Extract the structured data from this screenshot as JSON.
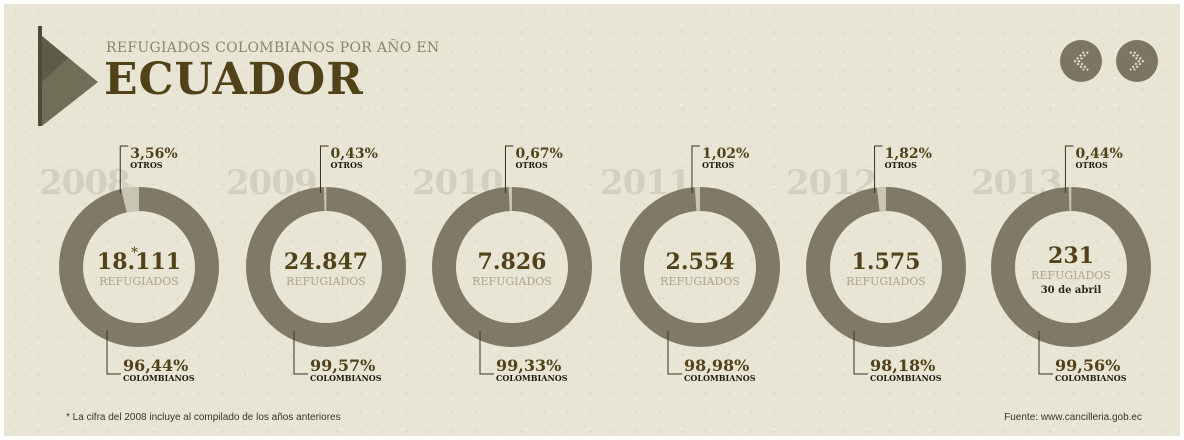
{
  "header": {
    "subtitle": "REFUGIADOS COLOMBIANOS POR AÑO EN",
    "title": "ECUADOR"
  },
  "nav": {
    "prev_icon": "chevron-left-icon",
    "next_icon": "chevron-right-icon"
  },
  "colors": {
    "background": "#e8e5d5",
    "ring_colombianos": "#817968",
    "ring_otros": "#c9c5b4",
    "year_text": "#d4d0c0",
    "count_text": "#51421a",
    "label_text": "#aba48d",
    "pct_text": "#51421a"
  },
  "chart_data": {
    "type": "pie",
    "title": "REFUGIADOS COLOMBIANOS POR AÑO EN ECUADOR",
    "series_labels": {
      "otros": "OTROS",
      "colombianos": "COLOMBIANOS"
    },
    "unit_label": "REFUGIADOS",
    "years": [
      {
        "year": "2008",
        "total": "18.111",
        "asterisk": "*",
        "otros": 3.56,
        "otros_label": "3,56%",
        "colombianos": 96.44,
        "colombianos_label": "96,44%",
        "note": ""
      },
      {
        "year": "2009",
        "total": "24.847",
        "asterisk": "",
        "otros": 0.43,
        "otros_label": "0,43%",
        "colombianos": 99.57,
        "colombianos_label": "99,57%",
        "note": ""
      },
      {
        "year": "2010",
        "total": "7.826",
        "asterisk": "",
        "otros": 0.67,
        "otros_label": "0,67%",
        "colombianos": 99.33,
        "colombianos_label": "99,33%",
        "note": ""
      },
      {
        "year": "2011",
        "total": "2.554",
        "asterisk": "",
        "otros": 1.02,
        "otros_label": "1,02%",
        "colombianos": 98.98,
        "colombianos_label": "98,98%",
        "note": ""
      },
      {
        "year": "2012",
        "total": "1.575",
        "asterisk": "",
        "otros": 1.82,
        "otros_label": "1,82%",
        "colombianos": 98.18,
        "colombianos_label": "98,18%",
        "note": ""
      },
      {
        "year": "2013",
        "total": "231",
        "asterisk": "",
        "otros": 0.44,
        "otros_label": "0,44%",
        "colombianos": 99.56,
        "colombianos_label": "99,56%",
        "note": "30 de abril"
      }
    ]
  },
  "footer": {
    "footnote": "* La cifra del 2008 incluye al compilado de los años anteriores",
    "source": "Fuente: www.cancilleria.gob.ec"
  }
}
